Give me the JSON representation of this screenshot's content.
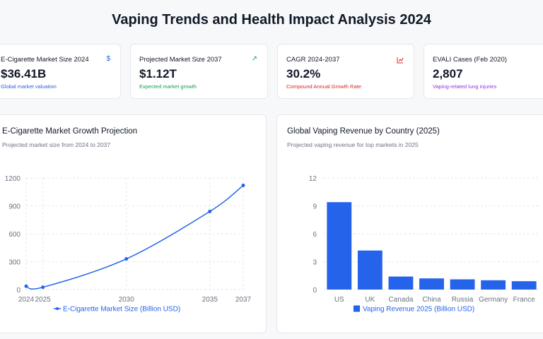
{
  "title": "Vaping Trends and Health Impact Analysis 2024",
  "stats": [
    {
      "label": "E-Cigarette Market Size 2024",
      "value": "$36.41B",
      "sub": "Global market valuation",
      "icon": "dollar-icon",
      "glyph": "$",
      "color": "#2563eb"
    },
    {
      "label": "Projected Market Size 2037",
      "value": "$1.12T",
      "sub": "Expected market growth",
      "icon": "trending-up-icon",
      "glyph": "↗",
      "color": "#16a34a"
    },
    {
      "label": "CAGR 2024-2037",
      "value": "30.2%",
      "sub": "Compound Annual Growth Rate",
      "icon": "chart-icon",
      "glyph": "⌞",
      "color": "#dc2626"
    },
    {
      "label": "EVALI Cases (Feb 2020)",
      "value": "2,807",
      "sub": "Vaping-related lung injuries",
      "icon": "alert-icon",
      "glyph": "",
      "color": "#9333ea"
    }
  ],
  "charts": {
    "line": {
      "title": "E-Cigarette Market Growth Projection",
      "subtitle": "Projected market size from 2024 to 2037"
    },
    "bar": {
      "title": "Global Vaping Revenue by Country (2025)",
      "subtitle": "Projected vaping revenue for top markets in 2025"
    }
  },
  "chart_data": [
    {
      "type": "line",
      "title": "E-Cigarette Market Growth Projection",
      "subtitle": "Projected market size from 2024 to 2037",
      "x": [
        2024,
        2025,
        2030,
        2035,
        2037
      ],
      "series": [
        {
          "name": "E-Cigarette Market Size (Billion USD)",
          "values": [
            36.41,
            25,
            330,
            840,
            1120
          ],
          "color": "#2563eb"
        }
      ],
      "xticks": [
        "2024",
        "2025",
        "2030",
        "2035",
        "2037"
      ],
      "yticks": [
        0,
        300,
        600,
        900,
        1200
      ],
      "ylim": [
        0,
        1200
      ],
      "grid": true,
      "legend": "bottom"
    },
    {
      "type": "bar",
      "title": "Global Vaping Revenue by Country (2025)",
      "subtitle": "Projected vaping revenue for top markets in 2025",
      "categories": [
        "US",
        "UK",
        "Canada",
        "China",
        "Russia",
        "Germany",
        "France"
      ],
      "series": [
        {
          "name": "Vaping Revenue 2025 (Billion USD)",
          "values": [
            9.4,
            4.2,
            1.4,
            1.2,
            1.1,
            1.0,
            0.9
          ],
          "color": "#2563eb"
        }
      ],
      "yticks": [
        0,
        3,
        6,
        9,
        12
      ],
      "ylim": [
        0,
        12
      ],
      "grid": true,
      "legend": "bottom"
    }
  ]
}
